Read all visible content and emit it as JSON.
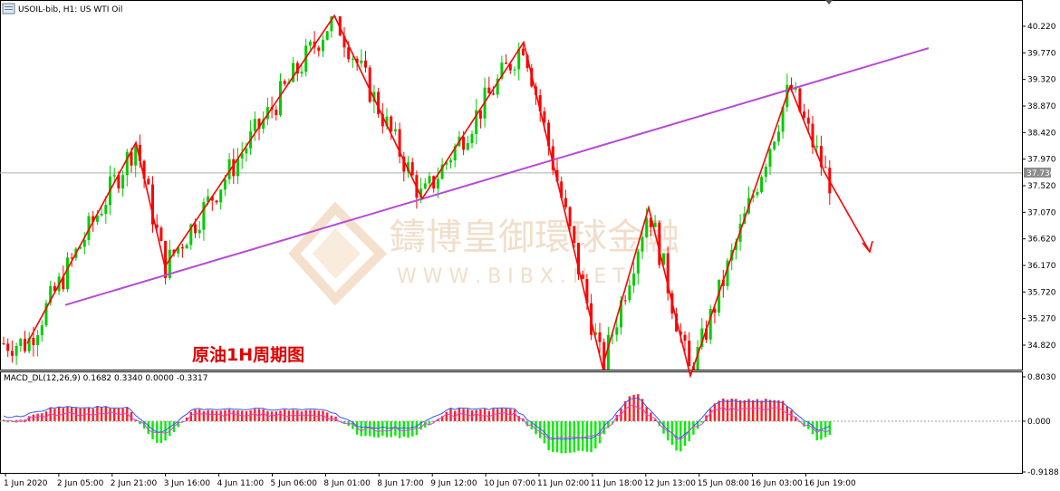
{
  "window": {
    "title": "USOIL-bib, H1:  US WTI Oil",
    "indicator_label": "MACD_DL(12,26,9) 0.1682 0.3340 0.0000 -0.3317"
  },
  "annotation": "原油1H周期图",
  "watermark": {
    "brand_cn": "鑄博皇御環球金融",
    "brand_url": "W W W . B I  B  X . N E T"
  },
  "colors": {
    "up_candle": "#00cc00",
    "down_candle": "#ff0000",
    "zigzag": "#ff0000",
    "trendline": "#b84ad6",
    "macd_up": "#ff2020",
    "macd_down": "#00ee00",
    "signal_blue": "#3355ff",
    "signal_magenta": "#e040e0"
  },
  "chart_data": [
    {
      "type": "candlestick",
      "title": "USOIL-bib, H1:  US WTI Oil",
      "ylim": [
        34.5,
        40.5
      ],
      "y_ticks": [
        "40.220",
        "39.770",
        "39.320",
        "38.870",
        "38.420",
        "37.970",
        "37.520",
        "37.070",
        "36.620",
        "36.170",
        "35.720",
        "35.270",
        "34.820"
      ],
      "current_price": "37.736",
      "x_ticks": [
        "1 Jun 2020",
        "2 Jun 05:00",
        "2 Jun 21:00",
        "3 Jun 16:00",
        "4 Jun 11:00",
        "5 Jun 06:00",
        "8 Jun 01:00",
        "8 Jun 17:00",
        "9 Jun 12:00",
        "10 Jun 07:00",
        "11 Jun 02:00",
        "11 Jun 18:00",
        "12 Jun 13:00",
        "15 Jun 08:00",
        "16 Jun 03:00",
        "16 Jun 19:00"
      ],
      "zigzag_prices": [
        34.85,
        38.25,
        36.15,
        40.4,
        37.3,
        39.95,
        34.45,
        37.15,
        34.3,
        36.7,
        39.2,
        37.75,
        36.4
      ],
      "trendline_prices": [
        35.5,
        39.85
      ]
    },
    {
      "type": "macd",
      "ylim": [
        -0.9188,
        0.803
      ],
      "y_ticks": [
        "0.8030",
        "0.000",
        "-0.9188"
      ]
    }
  ]
}
